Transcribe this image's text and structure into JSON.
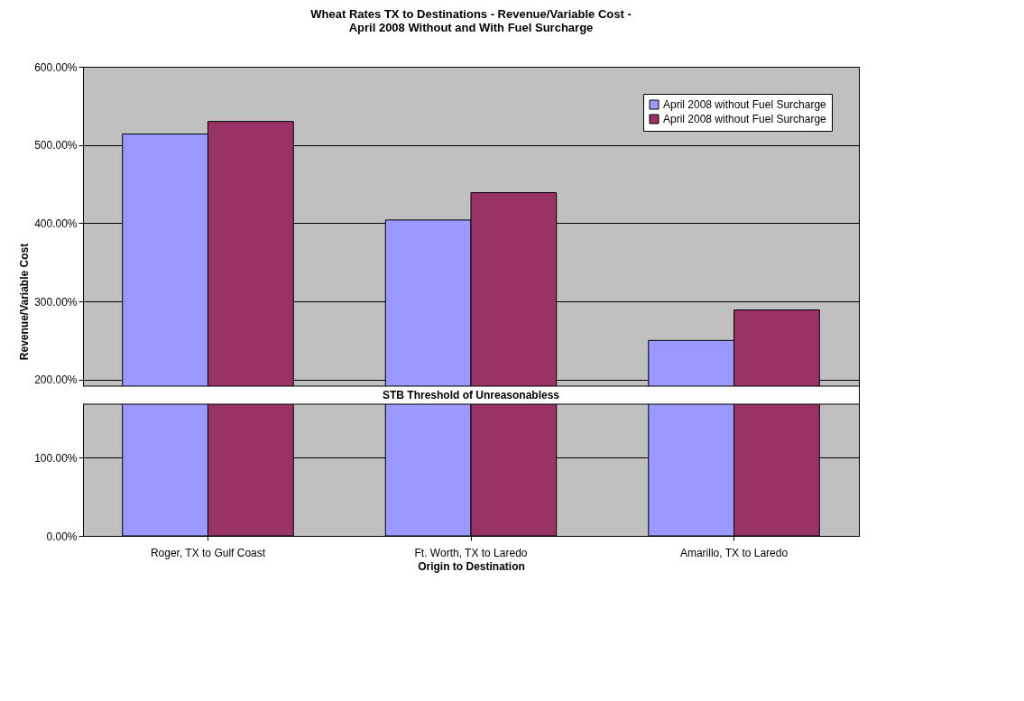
{
  "chart_data": {
    "type": "bar",
    "title": "Wheat Rates TX to Destinations - Revenue/Variable Cost -\nApril 2008 Without and With Fuel Surcharge",
    "xlabel": "Origin to Destination",
    "ylabel": "Revenue/Variable Cost",
    "categories": [
      "Roger, TX to Gulf Coast",
      "Ft. Worth, TX to Laredo",
      "Amarillo, TX to Laredo"
    ],
    "series": [
      {
        "name": "April 2008 without Fuel Surcharge",
        "color": "#9999ff",
        "values": [
          514,
          404,
          250
        ]
      },
      {
        "name": "April 2008 without Fuel Surcharge",
        "color": "#993366",
        "values": [
          530,
          439,
          289
        ]
      }
    ],
    "ylim": [
      0,
      600
    ],
    "yticks": [
      {
        "value": 0,
        "label": "0.00%"
      },
      {
        "value": 100,
        "label": "100.00%"
      },
      {
        "value": 200,
        "label": "200.00%"
      },
      {
        "value": 300,
        "label": "300.00%"
      },
      {
        "value": 400,
        "label": "400.00%"
      },
      {
        "value": 500,
        "label": "500.00%"
      },
      {
        "value": 600,
        "label": "600.00%"
      }
    ],
    "ref_lines": [
      {
        "axis": "y",
        "value": 180,
        "label": "STB Threshold of Unreasonabless"
      }
    ],
    "grid": "y",
    "legend": "top right"
  }
}
